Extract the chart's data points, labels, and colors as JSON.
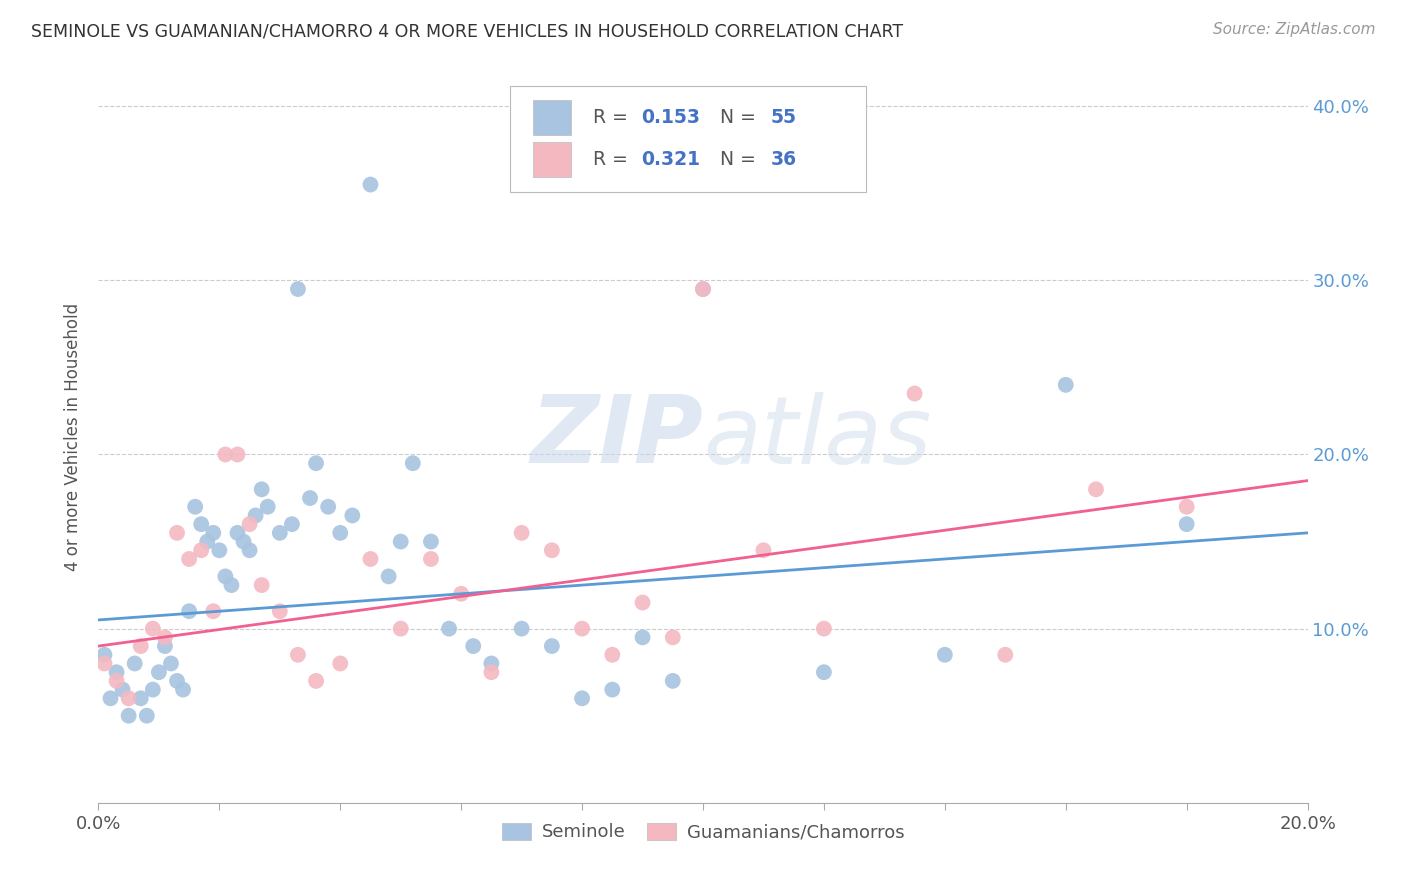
{
  "title": "SEMINOLE VS GUAMANIAN/CHAMORRO 4 OR MORE VEHICLES IN HOUSEHOLD CORRELATION CHART",
  "source": "Source: ZipAtlas.com",
  "ylabel": "4 or more Vehicles in Household",
  "xlim": [
    0.0,
    0.2
  ],
  "ylim": [
    0.0,
    0.42
  ],
  "xticks": [
    0.0,
    0.02,
    0.04,
    0.06,
    0.08,
    0.1,
    0.12,
    0.14,
    0.16,
    0.18,
    0.2
  ],
  "yticks": [
    0.0,
    0.1,
    0.2,
    0.3,
    0.4
  ],
  "seminole_color": "#a8c4e0",
  "guamanian_color": "#f4b8c1",
  "seminole_line_color": "#5b9bd5",
  "guamanian_line_color": "#f06090",
  "legend_label1": "Seminole",
  "legend_label2": "Guamanians/Chamorros",
  "watermark_zip": "ZIP",
  "watermark_atlas": "atlas",
  "seminole_x": [
    0.001,
    0.002,
    0.003,
    0.004,
    0.005,
    0.006,
    0.007,
    0.008,
    0.009,
    0.01,
    0.011,
    0.012,
    0.013,
    0.014,
    0.015,
    0.016,
    0.017,
    0.018,
    0.019,
    0.02,
    0.021,
    0.022,
    0.023,
    0.024,
    0.025,
    0.026,
    0.027,
    0.028,
    0.03,
    0.032,
    0.033,
    0.035,
    0.036,
    0.038,
    0.04,
    0.042,
    0.045,
    0.048,
    0.05,
    0.052,
    0.055,
    0.058,
    0.062,
    0.065,
    0.07,
    0.075,
    0.08,
    0.085,
    0.09,
    0.095,
    0.1,
    0.12,
    0.14,
    0.16,
    0.18
  ],
  "seminole_y": [
    0.085,
    0.06,
    0.075,
    0.065,
    0.05,
    0.08,
    0.06,
    0.05,
    0.065,
    0.075,
    0.09,
    0.08,
    0.07,
    0.065,
    0.11,
    0.17,
    0.16,
    0.15,
    0.155,
    0.145,
    0.13,
    0.125,
    0.155,
    0.15,
    0.145,
    0.165,
    0.18,
    0.17,
    0.155,
    0.16,
    0.295,
    0.175,
    0.195,
    0.17,
    0.155,
    0.165,
    0.355,
    0.13,
    0.15,
    0.195,
    0.15,
    0.1,
    0.09,
    0.08,
    0.1,
    0.09,
    0.06,
    0.065,
    0.095,
    0.07,
    0.295,
    0.075,
    0.085,
    0.24,
    0.16
  ],
  "guamanian_x": [
    0.001,
    0.003,
    0.005,
    0.007,
    0.009,
    0.011,
    0.013,
    0.015,
    0.017,
    0.019,
    0.021,
    0.023,
    0.025,
    0.027,
    0.03,
    0.033,
    0.036,
    0.04,
    0.045,
    0.05,
    0.055,
    0.06,
    0.065,
    0.07,
    0.075,
    0.08,
    0.085,
    0.09,
    0.095,
    0.1,
    0.11,
    0.12,
    0.135,
    0.15,
    0.165,
    0.18
  ],
  "guamanian_y": [
    0.08,
    0.07,
    0.06,
    0.09,
    0.1,
    0.095,
    0.155,
    0.14,
    0.145,
    0.11,
    0.2,
    0.2,
    0.16,
    0.125,
    0.11,
    0.085,
    0.07,
    0.08,
    0.14,
    0.1,
    0.14,
    0.12,
    0.075,
    0.155,
    0.145,
    0.1,
    0.085,
    0.115,
    0.095,
    0.295,
    0.145,
    0.1,
    0.235,
    0.085,
    0.18,
    0.17
  ]
}
